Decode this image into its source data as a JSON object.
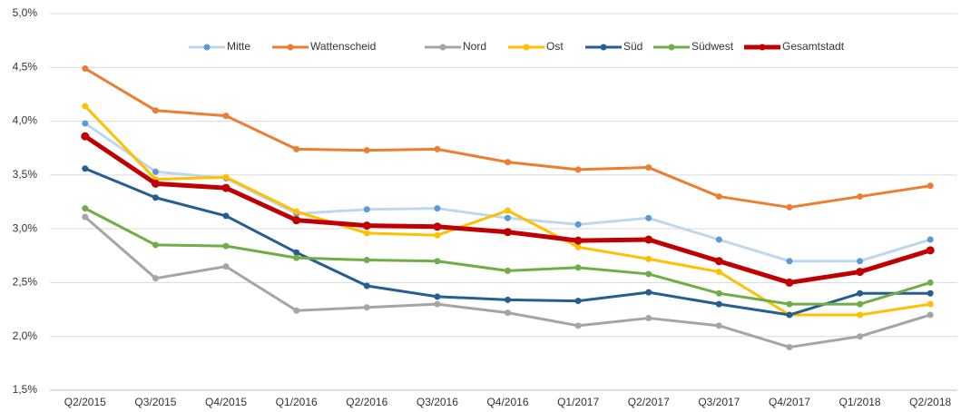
{
  "chart_data": {
    "type": "line",
    "categories": [
      "Q2/2015",
      "Q3/2015",
      "Q4/2015",
      "Q1/2016",
      "Q2/2016",
      "Q3/2016",
      "Q4/2016",
      "Q1/2017",
      "Q2/2017",
      "Q3/2017",
      "Q4/2017",
      "Q1/2018",
      "Q2/2018"
    ],
    "series": [
      {
        "name": "Mitte",
        "color": "#bdd7ee",
        "marker_color": "#5b9bd5",
        "line_width": 3,
        "values": [
          3.98,
          3.53,
          3.47,
          3.14,
          3.18,
          3.19,
          3.1,
          3.04,
          3.1,
          2.9,
          2.7,
          2.7,
          2.9
        ]
      },
      {
        "name": "Wattenscheid",
        "color": "#ed7d31",
        "marker_color": "#ed7d31",
        "line_width": 3,
        "values": [
          4.49,
          4.1,
          4.05,
          3.74,
          3.73,
          3.74,
          3.62,
          3.55,
          3.57,
          3.3,
          3.2,
          3.3,
          3.4
        ]
      },
      {
        "name": "Nord",
        "color": "#a5a5a5",
        "marker_color": "#a5a5a5",
        "line_width": 3,
        "values": [
          3.11,
          2.54,
          2.65,
          2.24,
          2.27,
          2.3,
          2.22,
          2.1,
          2.17,
          2.1,
          1.9,
          2.0,
          2.2
        ]
      },
      {
        "name": "Ost",
        "color": "#ffc000",
        "marker_color": "#ffc000",
        "line_width": 3,
        "values": [
          4.14,
          3.46,
          3.48,
          3.16,
          2.96,
          2.94,
          3.17,
          2.83,
          2.72,
          2.6,
          2.2,
          2.2,
          2.3
        ]
      },
      {
        "name": "Süd",
        "color": "#255e91",
        "marker_color": "#255e91",
        "line_width": 3,
        "values": [
          3.56,
          3.29,
          3.12,
          2.78,
          2.47,
          2.37,
          2.34,
          2.33,
          2.41,
          2.3,
          2.2,
          2.4,
          2.4
        ]
      },
      {
        "name": "Südwest",
        "color": "#70ad47",
        "marker_color": "#70ad47",
        "line_width": 3,
        "values": [
          3.19,
          2.85,
          2.84,
          2.73,
          2.71,
          2.7,
          2.61,
          2.64,
          2.58,
          2.4,
          2.3,
          2.3,
          2.5
        ]
      },
      {
        "name": "Gesamtstadt",
        "color": "#c00000",
        "marker_color": "#c00000",
        "line_width": 5,
        "values": [
          3.86,
          3.42,
          3.38,
          3.08,
          3.03,
          3.02,
          2.97,
          2.89,
          2.9,
          2.7,
          2.5,
          2.6,
          2.8
        ]
      }
    ],
    "ylim": [
      1.5,
      5.0
    ],
    "yticks": [
      {
        "value": 1.5,
        "label": "1,5%"
      },
      {
        "value": 2.0,
        "label": "2,0%"
      },
      {
        "value": 2.5,
        "label": "2,5%"
      },
      {
        "value": 3.0,
        "label": "3,0%"
      },
      {
        "value": 3.5,
        "label": "3,5%"
      },
      {
        "value": 4.0,
        "label": "4,0%"
      },
      {
        "value": 4.5,
        "label": "4,5%"
      },
      {
        "value": 5.0,
        "label": "5,0%"
      }
    ],
    "grid": true,
    "legend": "top"
  }
}
